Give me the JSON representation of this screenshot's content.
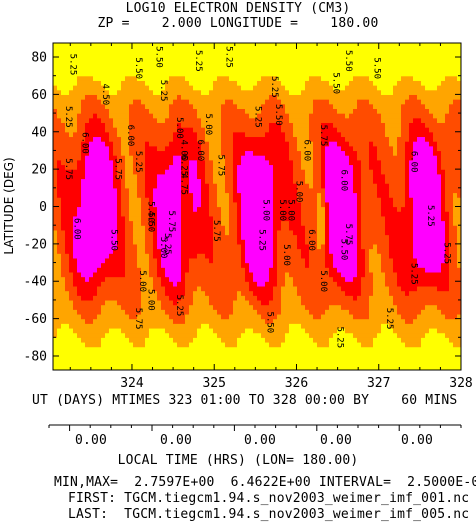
{
  "header": {
    "title": "LOG10 ELECTRON DENSITY (CM3)",
    "subtitle": "ZP =    2.000 LONGITUDE =    180.00"
  },
  "colors": {
    "level_fills": [
      "#ffff00",
      "#ffa500",
      "#ff4c00",
      "#ff0000",
      "#ff00ff",
      "#ff00ff",
      "#ff00ff"
    ],
    "peak_green": "#00cc00",
    "min_dark": "#000000"
  },
  "chart_data": {
    "type": "heatmap",
    "variable": "LOG10 ELECTRON DENSITY (CM3)",
    "ylabel": "LATITUDE (DEG)",
    "xlabel": "UT (DAYS) MTIMES 323 01:00 TO 328 00:00 BY    60 MINS",
    "xlim": [
      323.04,
      328.0
    ],
    "ylim": [
      -87.5,
      87.5
    ],
    "x_ticks": [
      "324",
      "325",
      "326",
      "327",
      "328"
    ],
    "x_tick_values": [
      324,
      325,
      326,
      327,
      328
    ],
    "y_ticks": [
      "80",
      "60",
      "40",
      "20",
      "0",
      "-20",
      "-40",
      "-60",
      "-80"
    ],
    "y_tick_values": [
      80,
      60,
      40,
      20,
      0,
      -20,
      -40,
      -60,
      -80
    ],
    "contour_interval": 0.25,
    "contour_levels": [
      4.75,
      5.0,
      5.25,
      5.5,
      5.75,
      6.0,
      6.25
    ],
    "min": 2.7597,
    "max": 6.4622,
    "diurnal_maxima_ut": [
      323.55,
      324.55,
      325.55,
      326.55,
      327.55
    ],
    "contour_labels": [
      {
        "x": 323.25,
        "y": 76,
        "text": "5.25"
      },
      {
        "x": 323.2,
        "y": 48,
        "text": "5.25"
      },
      {
        "x": 323.4,
        "y": 34,
        "text": "6.00"
      },
      {
        "x": 323.2,
        "y": 20,
        "text": "5.75"
      },
      {
        "x": 323.8,
        "y": 20,
        "text": "5.75"
      },
      {
        "x": 323.3,
        "y": -12,
        "text": "6.00"
      },
      {
        "x": 323.75,
        "y": -18,
        "text": "5.50"
      },
      {
        "x": 324.05,
        "y": 74,
        "text": "5.50"
      },
      {
        "x": 323.65,
        "y": 60,
        "text": "4.50"
      },
      {
        "x": 323.95,
        "y": 38,
        "text": "6.00"
      },
      {
        "x": 324.05,
        "y": 24,
        "text": "5.25"
      },
      {
        "x": 324.2,
        "y": -3,
        "text": "5.50"
      },
      {
        "x": 324.2,
        "y": -8,
        "text": "4.50"
      },
      {
        "x": 324.35,
        "y": -22,
        "text": "5.00"
      },
      {
        "x": 324.1,
        "y": -40,
        "text": "5.00"
      },
      {
        "x": 324.2,
        "y": -50,
        "text": "5.00"
      },
      {
        "x": 324.05,
        "y": -60,
        "text": "5.75"
      },
      {
        "x": 324.3,
        "y": 80,
        "text": "5.50"
      },
      {
        "x": 324.35,
        "y": 62,
        "text": "5.25"
      },
      {
        "x": 324.55,
        "y": 42,
        "text": "5.00"
      },
      {
        "x": 324.6,
        "y": 30,
        "text": "4.00"
      },
      {
        "x": 324.6,
        "y": 22,
        "text": "6.25"
      },
      {
        "x": 324.6,
        "y": 12,
        "text": "4.75"
      },
      {
        "x": 324.45,
        "y": -8,
        "text": "5.75"
      },
      {
        "x": 324.4,
        "y": -20,
        "text": "5.25"
      },
      {
        "x": 324.55,
        "y": -53,
        "text": "5.25"
      },
      {
        "x": 324.78,
        "y": 78,
        "text": "5.25"
      },
      {
        "x": 324.9,
        "y": 44,
        "text": "5.00"
      },
      {
        "x": 324.8,
        "y": 30,
        "text": "6.00"
      },
      {
        "x": 325.05,
        "y": 22,
        "text": "5.75"
      },
      {
        "x": 325.0,
        "y": -13,
        "text": "5.75"
      },
      {
        "x": 325.15,
        "y": 80,
        "text": "5.25"
      },
      {
        "x": 325.7,
        "y": 64,
        "text": "5.25"
      },
      {
        "x": 325.75,
        "y": 49,
        "text": "5.50"
      },
      {
        "x": 325.5,
        "y": 48,
        "text": "5.25"
      },
      {
        "x": 325.6,
        "y": -2,
        "text": "5.00"
      },
      {
        "x": 325.55,
        "y": -18,
        "text": "5.25"
      },
      {
        "x": 325.85,
        "y": -26,
        "text": "5.00"
      },
      {
        "x": 325.8,
        "y": -2,
        "text": "5.00"
      },
      {
        "x": 325.9,
        "y": -2,
        "text": "5.00"
      },
      {
        "x": 325.65,
        "y": -62,
        "text": "5.50"
      },
      {
        "x": 326.1,
        "y": 30,
        "text": "6.00"
      },
      {
        "x": 326.3,
        "y": 38,
        "text": "5.75"
      },
      {
        "x": 326.0,
        "y": 8,
        "text": "5.00"
      },
      {
        "x": 326.15,
        "y": -18,
        "text": "6.00"
      },
      {
        "x": 326.3,
        "y": -40,
        "text": "5.00"
      },
      {
        "x": 326.6,
        "y": 78,
        "text": "5.50"
      },
      {
        "x": 326.45,
        "y": 66,
        "text": "5.50"
      },
      {
        "x": 326.95,
        "y": 74,
        "text": "5.50"
      },
      {
        "x": 326.55,
        "y": 14,
        "text": "6.00"
      },
      {
        "x": 326.6,
        "y": -15,
        "text": "5.75"
      },
      {
        "x": 326.55,
        "y": -23,
        "text": "5.50"
      },
      {
        "x": 326.5,
        "y": -70,
        "text": "5.25"
      },
      {
        "x": 327.4,
        "y": 24,
        "text": "6.00"
      },
      {
        "x": 327.6,
        "y": -5,
        "text": "5.25"
      },
      {
        "x": 327.8,
        "y": -25,
        "text": "5.25"
      },
      {
        "x": 327.1,
        "y": -60,
        "text": "5.25"
      },
      {
        "x": 327.4,
        "y": -36,
        "text": "5.25"
      }
    ]
  },
  "local_time_axis": {
    "labels": [
      "0.00",
      "0.00",
      "0.00",
      "0.00",
      "0.00"
    ],
    "label": "LOCAL TIME (HRS) (LON= 180.00)"
  },
  "footer": {
    "minmax": "MIN,MAX=  2.7597E+00  6.4622E+00 INTERVAL=  2.5000E-01",
    "first": "FIRST: TGCM.tiegcm1.94.s_nov2003_weimer_imf_001.nc",
    "last": "LAST:  TGCM.tiegcm1.94.s_nov2003_weimer_imf_005.nc"
  }
}
